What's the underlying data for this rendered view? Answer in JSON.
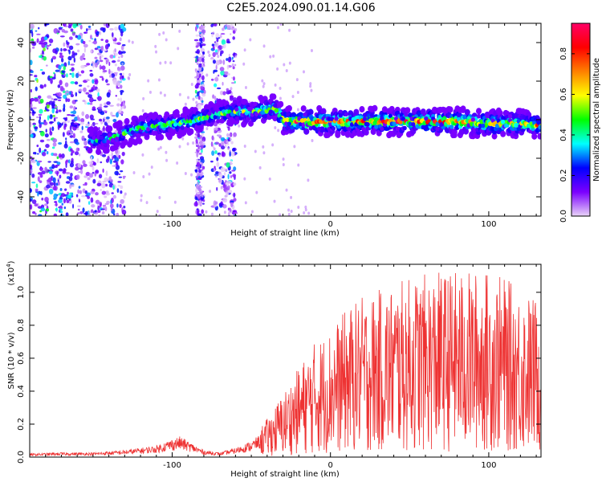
{
  "title": "C2E5.2024.090.01.14.G06",
  "chart_data": [
    {
      "type": "heatmap",
      "title": "C2E5.2024.090.01.14.G06",
      "xlabel": "Height of straight line (km)",
      "ylabel": "Frequency (Hz)",
      "xlim": [
        -190,
        133
      ],
      "ylim": [
        -50,
        50
      ],
      "xticks": [
        -100,
        0,
        100
      ],
      "yticks": [
        -40,
        -20,
        0,
        20,
        40
      ],
      "colorbar": {
        "label": "Normalized spectral amplitude",
        "range": [
          0.0,
          0.95
        ],
        "ticks": [
          0.0,
          0.2,
          0.4,
          0.6,
          0.8
        ],
        "colormap": [
          "#e9d4f7",
          "#7b00ff",
          "#0000ff",
          "#00ffff",
          "#00ff00",
          "#ffff00",
          "#ff8000",
          "#ff0000",
          "#ff0066"
        ]
      },
      "ridge": {
        "x": [
          -150,
          -140,
          -130,
          -120,
          -110,
          -100,
          -90,
          -80,
          -70,
          -60,
          -50,
          -40,
          -35,
          -30,
          -25,
          -20,
          0,
          20,
          40,
          60,
          80,
          100,
          120,
          133
        ],
        "frequency": [
          -11,
          -10,
          -7,
          -4,
          -3,
          -2,
          -1,
          1,
          3,
          4,
          4,
          5,
          6,
          0,
          -1,
          -1,
          -1,
          -1,
          -1,
          -1,
          -1,
          -2,
          -2,
          -3
        ],
        "amplitude": [
          0.45,
          0.5,
          0.5,
          0.55,
          0.55,
          0.6,
          0.55,
          0.55,
          0.55,
          0.6,
          0.6,
          0.65,
          0.6,
          0.75,
          0.85,
          0.9,
          0.9,
          0.85,
          0.85,
          0.9,
          0.85,
          0.8,
          0.75,
          0.7
        ]
      },
      "noise_bands_x": [
        [
          -190,
          -130
        ],
        [
          -85,
          -80
        ],
        [
          -75,
          -60
        ]
      ]
    },
    {
      "type": "line",
      "xlabel": "Height of straight line (km)",
      "ylabel": "SNR (10 * v/v)",
      "multiplier_label": "(x10",
      "multiplier_exp": "4",
      "xlim": [
        -190,
        133
      ],
      "ylim": [
        0.0,
        1.17
      ],
      "xticks": [
        -100,
        0,
        100
      ],
      "yticks": [
        0.0,
        0.2,
        0.4,
        0.6,
        0.8,
        1.0
      ],
      "color": "#ee3333",
      "series": [
        {
          "x": [
            -190,
            -170,
            -150,
            -130,
            -110,
            -100,
            -95,
            -90,
            -80,
            -70,
            -60,
            -50,
            -40,
            -30,
            -20,
            -15,
            -10,
            0,
            10,
            20,
            30,
            40,
            50,
            60,
            70,
            80,
            90,
            100,
            110,
            120,
            130
          ],
          "values": [
            0.015,
            0.02,
            0.02,
            0.03,
            0.05,
            0.08,
            0.09,
            0.07,
            0.03,
            0.02,
            0.04,
            0.07,
            0.12,
            0.2,
            0.28,
            0.32,
            0.36,
            0.4,
            0.46,
            0.5,
            0.52,
            0.54,
            0.56,
            0.57,
            0.58,
            0.58,
            0.58,
            0.58,
            0.56,
            0.52,
            0.5
          ]
        }
      ]
    }
  ]
}
